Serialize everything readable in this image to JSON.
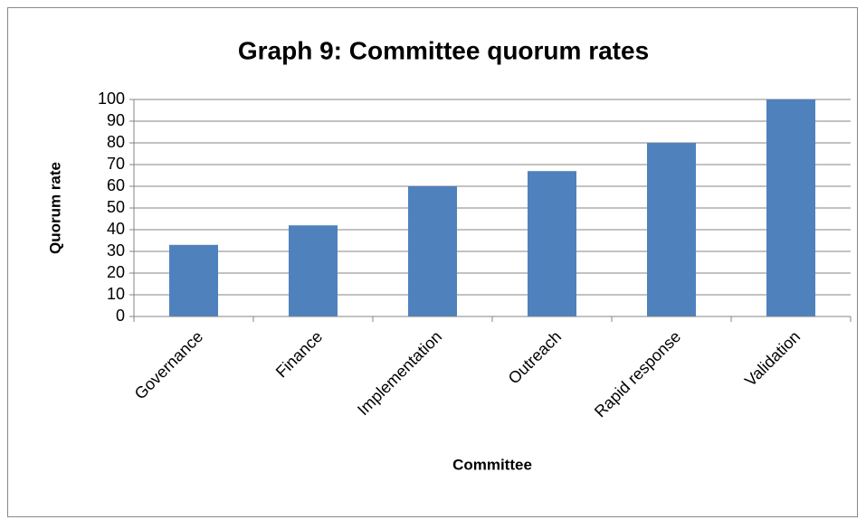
{
  "chart_data": {
    "type": "bar",
    "title": "Graph 9: Committee quorum rates",
    "x_label": "Committee",
    "y_label": "Quorum rate",
    "categories": [
      "Governance",
      "Finance",
      "Implementation",
      "Outreach",
      "Rapid response",
      "Validation"
    ],
    "values": [
      33,
      42,
      60,
      67,
      80,
      100
    ],
    "color": "#4f81bd",
    "ylim": [
      0,
      100
    ],
    "yticks": [
      0,
      10,
      20,
      30,
      40,
      50,
      60,
      70,
      80,
      90,
      100
    ],
    "grid": true
  }
}
